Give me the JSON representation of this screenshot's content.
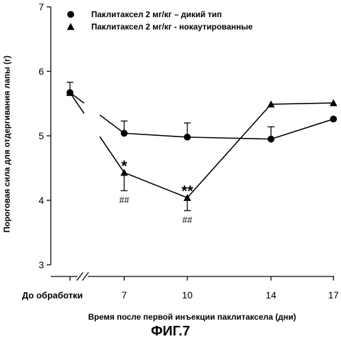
{
  "chart_data": {
    "type": "line",
    "xlabel": "Время после первой инъекции паклитаксела (дни)",
    "ylabel": "Пороговая сила для отдергивания лапы (г)",
    "ylim": [
      3,
      7
    ],
    "yticks": [
      3,
      4,
      5,
      6,
      7
    ],
    "x_categories": [
      "До обработки",
      "7",
      "10",
      "14",
      "17"
    ],
    "axis_break": "between До обработки and 7",
    "series": [
      {
        "name": "Паклитаксел 2 мг/кг – дикий тип",
        "marker": "circle",
        "x": [
          "До обработки",
          "7",
          "10",
          "14",
          "17"
        ],
        "y": [
          5.67,
          5.04,
          4.98,
          4.95,
          5.26
        ],
        "error": [
          0.16,
          0.19,
          0.22,
          0.19,
          null
        ]
      },
      {
        "name": "Паклитаксел 2 мг/кг - нокаутированные",
        "marker": "triangle",
        "x": [
          "До обработки",
          "7",
          "10",
          "14",
          "17"
        ],
        "y": [
          5.67,
          4.43,
          4.04,
          5.49,
          5.51
        ],
        "error": [
          null,
          0.28,
          0.2,
          null,
          null
        ]
      }
    ],
    "annotations": [
      {
        "text": "*",
        "x": "7",
        "position": "above"
      },
      {
        "text": "##",
        "x": "7",
        "position": "below"
      },
      {
        "text": "**",
        "x": "10",
        "position": "above"
      },
      {
        "text": "##",
        "x": "10",
        "position": "below"
      }
    ],
    "legend_position": "top"
  },
  "figure_label": "ФИГ.7"
}
